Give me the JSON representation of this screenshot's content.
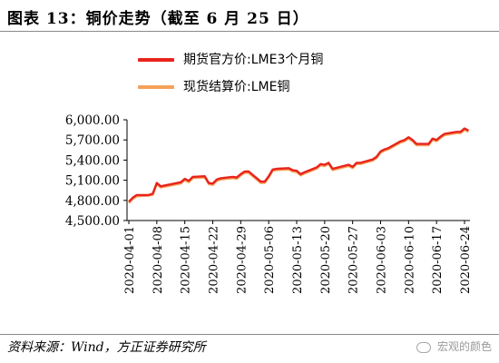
{
  "title": "图表 13：铜价走势（截至 6 月 25 日）",
  "source": "资料来源：Wind，方正证券研究所",
  "watermark": "宏观的颜色",
  "watermark_icon": "wechat-icon",
  "colors": {
    "series1": "#e8231c",
    "series2": "#f5a25a",
    "axis": "#000000"
  },
  "chart_data": {
    "type": "line",
    "title": "",
    "xlabel": "",
    "ylabel": "",
    "ylim": [
      4500,
      6000
    ],
    "yticks": [
      4500,
      4800,
      5100,
      5400,
      5700,
      6000
    ],
    "ytick_labels": [
      "4,500.00",
      "4,800.00",
      "5,100.00",
      "5,400.00",
      "5,700.00",
      "6,000.00"
    ],
    "xtick_labels": [
      "2020-04-01",
      "2020-04-08",
      "2020-04-15",
      "2020-04-22",
      "2020-04-29",
      "2020-05-06",
      "2020-05-13",
      "2020-05-20",
      "2020-05-27",
      "2020-06-03",
      "2020-06-10",
      "2020-06-17",
      "2020-06-24"
    ],
    "grid": false,
    "legend_position": "top",
    "x": [
      "2020-04-01",
      "2020-04-02",
      "2020-04-03",
      "2020-04-06",
      "2020-04-07",
      "2020-04-08",
      "2020-04-09",
      "2020-04-14",
      "2020-04-15",
      "2020-04-16",
      "2020-04-17",
      "2020-04-20",
      "2020-04-21",
      "2020-04-22",
      "2020-04-23",
      "2020-04-24",
      "2020-04-27",
      "2020-04-28",
      "2020-04-29",
      "2020-04-30",
      "2020-05-01",
      "2020-05-04",
      "2020-05-05",
      "2020-05-06",
      "2020-05-07",
      "2020-05-08",
      "2020-05-11",
      "2020-05-12",
      "2020-05-13",
      "2020-05-14",
      "2020-05-15",
      "2020-05-18",
      "2020-05-19",
      "2020-05-20",
      "2020-05-21",
      "2020-05-22",
      "2020-05-26",
      "2020-05-27",
      "2020-05-28",
      "2020-05-29",
      "2020-06-01",
      "2020-06-02",
      "2020-06-03",
      "2020-06-04",
      "2020-06-05",
      "2020-06-08",
      "2020-06-09",
      "2020-06-10",
      "2020-06-11",
      "2020-06-12",
      "2020-06-15",
      "2020-06-16",
      "2020-06-17",
      "2020-06-18",
      "2020-06-19",
      "2020-06-22",
      "2020-06-23",
      "2020-06-24",
      "2020-06-25"
    ],
    "series": [
      {
        "name": "期货官方价:LME3个月铜",
        "values": [
          4780,
          4840,
          4880,
          4880,
          4900,
          5060,
          5010,
          5070,
          5120,
          5090,
          5150,
          5160,
          5060,
          5050,
          5110,
          5130,
          5150,
          5140,
          5190,
          5230,
          5230,
          5080,
          5080,
          5160,
          5260,
          5270,
          5280,
          5250,
          5240,
          5190,
          5220,
          5290,
          5340,
          5330,
          5360,
          5270,
          5330,
          5300,
          5360,
          5360,
          5410,
          5450,
          5530,
          5560,
          5580,
          5680,
          5700,
          5740,
          5700,
          5640,
          5640,
          5720,
          5700,
          5750,
          5790,
          5820,
          5820,
          5870,
          5840
        ]
      },
      {
        "name": "现货结算价:LME铜",
        "values": [
          4760,
          4820,
          4860,
          4870,
          4880,
          5040,
          4990,
          5050,
          5100,
          5070,
          5130,
          5140,
          5040,
          5030,
          5090,
          5110,
          5130,
          5120,
          5170,
          5210,
          5210,
          5060,
          5060,
          5140,
          5240,
          5250,
          5260,
          5230,
          5220,
          5170,
          5200,
          5270,
          5320,
          5310,
          5340,
          5250,
          5310,
          5280,
          5340,
          5340,
          5390,
          5430,
          5510,
          5540,
          5560,
          5660,
          5680,
          5720,
          5680,
          5620,
          5620,
          5700,
          5680,
          5730,
          5770,
          5800,
          5800,
          5850,
          5820
        ]
      }
    ]
  }
}
